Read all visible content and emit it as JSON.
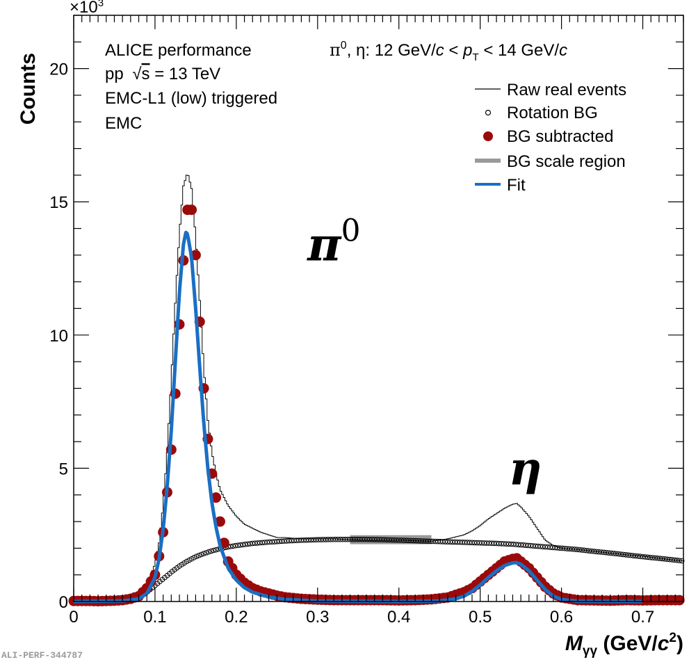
{
  "chart_data": {
    "type": "scatter",
    "title": "",
    "xlabel": "M_γγ (GeV/c²)",
    "xlabel_parts": {
      "main": "M",
      "sub": "γγ",
      "unit_open": " (GeV/",
      "unit_c": "c",
      "unit_sup": "2",
      "unit_close": ")"
    },
    "ylabel": "Counts",
    "y_multiplier": "×10³",
    "y_multiplier_parts": {
      "base": "×10",
      "exp": "3"
    },
    "xlim": [
      0,
      0.75
    ],
    "ylim": [
      0,
      22
    ],
    "x_ticks": [
      0,
      0.1,
      0.2,
      0.3,
      0.4,
      0.5,
      0.6,
      0.7
    ],
    "x_tick_labels": [
      "0",
      "0.1",
      "0.2",
      "0.3",
      "0.4",
      "0.5",
      "0.6",
      "0.7"
    ],
    "y_ticks": [
      0,
      5,
      10,
      15,
      20
    ],
    "y_tick_labels": [
      "0",
      "5",
      "10",
      "15",
      "20"
    ],
    "grid": false,
    "legend_position": "top-right",
    "info_lines": [
      "ALICE performance",
      "pp  √s = 13 TeV",
      "EMC-L1 (low) triggered",
      "EMC"
    ],
    "pt_range_label": "π⁰, η:  12 GeV/c < p_T <  14 GeV/c",
    "pt_range_parts": {
      "prefix": "π",
      "pi_sup": "0",
      "mid": ", η:  12 GeV/",
      "c1": "c",
      "lt1": " < ",
      "p": "p",
      "t": "T",
      "lt2": " <  14 GeV/",
      "c2": "c"
    },
    "sqrt_s_parts": {
      "pp": "pp ",
      "root": "√",
      "s": "s",
      "rest": " = 13 TeV"
    },
    "peak_labels": [
      {
        "text": "π",
        "sup": "0",
        "x": 0.2875,
        "y": 12.8
      },
      {
        "text": "η",
        "x": 0.535,
        "y": 4.4
      }
    ],
    "legend": [
      {
        "label": "Raw real events",
        "style": "line",
        "color": "#000000"
      },
      {
        "label": "Rotation BG",
        "style": "open-circle",
        "color": "#000000"
      },
      {
        "label": "BG subtracted",
        "style": "filled-circle",
        "color": "#9b0a0a"
      },
      {
        "label": "BG scale region",
        "style": "band",
        "color": "#9a9a9a"
      },
      {
        "label": "Fit",
        "style": "thick-line",
        "color": "#1a6fc4"
      }
    ],
    "bg_scale_region": {
      "x": [
        0.34,
        0.44
      ],
      "y_center": 2.32,
      "half_height": 0.17
    },
    "series": [
      {
        "name": "Raw real events",
        "type": "step",
        "color": "#000000",
        "x": [
          0.0,
          0.05,
          0.07,
          0.08,
          0.09,
          0.1,
          0.105,
          0.11,
          0.115,
          0.12,
          0.125,
          0.13,
          0.135,
          0.14,
          0.145,
          0.15,
          0.155,
          0.16,
          0.165,
          0.17,
          0.175,
          0.18,
          0.19,
          0.2,
          0.21,
          0.22,
          0.23,
          0.24,
          0.25,
          0.26,
          0.28,
          0.3,
          0.32,
          0.34,
          0.36,
          0.38,
          0.4,
          0.42,
          0.44,
          0.46,
          0.48,
          0.49,
          0.5,
          0.51,
          0.52,
          0.53,
          0.54,
          0.545,
          0.55,
          0.56,
          0.57,
          0.58,
          0.59,
          0.6,
          0.62,
          0.65,
          0.68,
          0.7,
          0.72,
          0.75
        ],
        "y": [
          0.05,
          0.08,
          0.15,
          0.3,
          0.6,
          1.4,
          2.2,
          3.6,
          5.6,
          8.3,
          11.2,
          13.8,
          15.6,
          16.1,
          15.5,
          13.7,
          11.3,
          8.8,
          6.8,
          5.6,
          4.8,
          4.2,
          3.6,
          3.2,
          2.9,
          2.75,
          2.6,
          2.5,
          2.4,
          2.4,
          2.35,
          2.35,
          2.35,
          2.32,
          2.3,
          2.3,
          2.3,
          2.28,
          2.26,
          2.35,
          2.5,
          2.65,
          2.85,
          3.1,
          3.3,
          3.5,
          3.65,
          3.68,
          3.55,
          3.2,
          2.75,
          2.3,
          2.1,
          2.0,
          1.95,
          1.85,
          1.75,
          1.7,
          1.62,
          1.52
        ]
      },
      {
        "name": "Rotation BG",
        "type": "open-circle",
        "color": "#000000",
        "x": [
          0.07,
          0.08,
          0.09,
          0.1,
          0.11,
          0.12,
          0.13,
          0.14,
          0.15,
          0.16,
          0.17,
          0.18,
          0.19,
          0.2,
          0.22,
          0.24,
          0.26,
          0.28,
          0.3,
          0.32,
          0.34,
          0.36,
          0.38,
          0.4,
          0.42,
          0.44,
          0.46,
          0.48,
          0.5,
          0.52,
          0.54,
          0.56,
          0.58,
          0.6,
          0.62,
          0.64,
          0.66,
          0.68,
          0.7,
          0.72,
          0.75
        ],
        "y": [
          0.05,
          0.15,
          0.35,
          0.6,
          0.85,
          1.1,
          1.33,
          1.52,
          1.68,
          1.8,
          1.9,
          1.98,
          2.05,
          2.1,
          2.18,
          2.23,
          2.27,
          2.3,
          2.32,
          2.33,
          2.33,
          2.33,
          2.32,
          2.3,
          2.28,
          2.26,
          2.24,
          2.22,
          2.2,
          2.18,
          2.15,
          2.1,
          2.05,
          2.0,
          1.95,
          1.88,
          1.82,
          1.75,
          1.68,
          1.62,
          1.52
        ]
      },
      {
        "name": "BG subtracted",
        "type": "filled-circle",
        "color": "#9b0a0a",
        "x": [
          0.0,
          0.01,
          0.02,
          0.03,
          0.04,
          0.05,
          0.06,
          0.07,
          0.08,
          0.09,
          0.1,
          0.105,
          0.11,
          0.115,
          0.12,
          0.125,
          0.13,
          0.135,
          0.14,
          0.145,
          0.15,
          0.155,
          0.16,
          0.165,
          0.17,
          0.175,
          0.18,
          0.185,
          0.19,
          0.2,
          0.21,
          0.22,
          0.23,
          0.24,
          0.25,
          0.26,
          0.28,
          0.3,
          0.32,
          0.34,
          0.36,
          0.38,
          0.4,
          0.42,
          0.44,
          0.46,
          0.48,
          0.49,
          0.5,
          0.51,
          0.52,
          0.53,
          0.54,
          0.545,
          0.55,
          0.56,
          0.57,
          0.58,
          0.59,
          0.6,
          0.62,
          0.64,
          0.66,
          0.68,
          0.7,
          0.72,
          0.74
        ],
        "y": [
          0.02,
          0.02,
          0.02,
          0.01,
          0.02,
          0.03,
          0.05,
          0.1,
          0.2,
          0.5,
          1.0,
          1.7,
          2.6,
          4.1,
          5.7,
          7.8,
          10.4,
          12.8,
          14.7,
          14.7,
          13.0,
          10.5,
          8.0,
          6.1,
          4.8,
          3.9,
          3.0,
          2.2,
          1.5,
          1.0,
          0.7,
          0.5,
          0.38,
          0.3,
          0.22,
          0.16,
          0.1,
          0.07,
          0.05,
          0.05,
          0.05,
          0.05,
          0.04,
          0.05,
          0.08,
          0.15,
          0.35,
          0.5,
          0.75,
          1.0,
          1.25,
          1.5,
          1.6,
          1.62,
          1.5,
          1.25,
          0.9,
          0.55,
          0.3,
          0.15,
          0.05,
          0.04,
          0.03,
          0.05,
          0.04,
          0.05,
          0.05
        ]
      },
      {
        "name": "Fit",
        "type": "thick-line",
        "color": "#1a6fc4",
        "x": [
          0.0,
          0.06,
          0.08,
          0.09,
          0.1,
          0.105,
          0.11,
          0.115,
          0.12,
          0.125,
          0.13,
          0.135,
          0.138,
          0.14,
          0.145,
          0.15,
          0.155,
          0.16,
          0.165,
          0.17,
          0.175,
          0.18,
          0.19,
          0.2,
          0.21,
          0.22,
          0.24,
          0.26,
          0.3,
          0.4,
          0.45,
          0.47,
          0.48,
          0.49,
          0.5,
          0.51,
          0.52,
          0.53,
          0.54,
          0.545,
          0.55,
          0.56,
          0.57,
          0.58,
          0.59,
          0.6,
          0.62,
          0.7
        ],
        "y": [
          0.0,
          0.02,
          0.1,
          0.3,
          0.9,
          1.6,
          2.7,
          4.3,
          6.4,
          9.0,
          11.6,
          13.4,
          13.85,
          13.8,
          12.9,
          11.0,
          8.8,
          6.7,
          5.0,
          3.7,
          2.8,
          2.1,
          1.25,
          0.8,
          0.52,
          0.35,
          0.17,
          0.08,
          0.02,
          0.0,
          0.02,
          0.1,
          0.2,
          0.38,
          0.62,
          0.9,
          1.15,
          1.35,
          1.45,
          1.46,
          1.4,
          1.15,
          0.8,
          0.45,
          0.2,
          0.08,
          0.01,
          0.0
        ]
      }
    ]
  },
  "watermark": "ALI-PERF-344787",
  "colors": {
    "raw": "#000000",
    "rotation_bg": "#000000",
    "bg_subtracted": "#9b0a0a",
    "scale_region": "#9a9a9a",
    "fit": "#1a6fc4"
  }
}
